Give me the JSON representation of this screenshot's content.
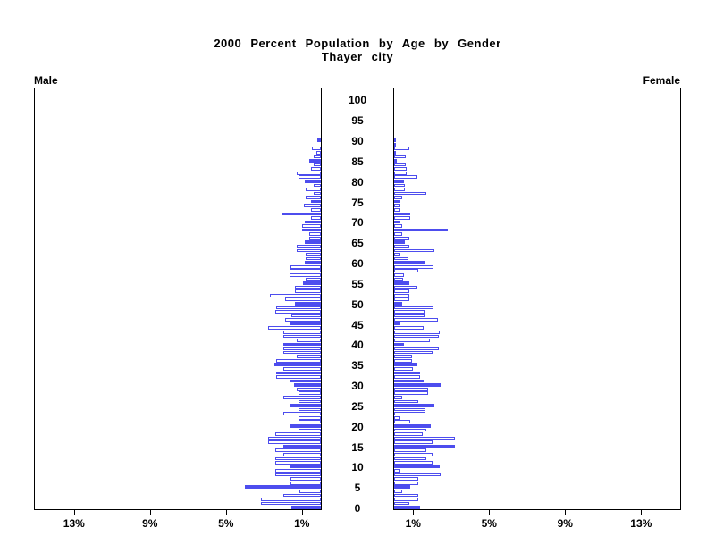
{
  "title": "2000 Percent Population by Age by Gender",
  "subtitle": "Thayer city",
  "left_label": "Male",
  "right_label": "Female",
  "chart_data": {
    "type": "bar",
    "variant": "population-pyramid",
    "title": "2000 Percent Population by Age by Gender",
    "subtitle": "Thayer city",
    "unit": "percent of total population",
    "bar_width_years": 1,
    "highlight_rule": "bars for ages divisible by 5 are solid blue; all other ages are white bars with blue outline",
    "colors": {
      "bar_blue": "#4d4dee",
      "axis": "#000000",
      "background": "#ffffff"
    },
    "age_axis": {
      "label": "Age",
      "ticks": [
        0,
        5,
        10,
        15,
        20,
        25,
        30,
        35,
        40,
        45,
        50,
        55,
        60,
        65,
        70,
        75,
        80,
        85,
        90,
        95,
        100
      ],
      "range": [
        0,
        103.5
      ]
    },
    "pct_axis": {
      "ticks": [
        1,
        5,
        9,
        13
      ],
      "tick_labels": [
        "1%",
        "5%",
        "9%",
        "13%"
      ],
      "range": [
        0,
        15.1
      ],
      "mirrored": true
    },
    "series": [
      {
        "name": "Male",
        "side": "left",
        "ages_start": 0,
        "values": [
          1.55,
          3.15,
          3.15,
          2.0,
          1.15,
          4.0,
          1.6,
          1.6,
          2.4,
          2.4,
          1.6,
          2.4,
          2.4,
          2.0,
          2.4,
          2.0,
          2.8,
          2.8,
          2.4,
          1.2,
          1.65,
          1.2,
          1.2,
          2.0,
          1.2,
          1.65,
          1.2,
          2.0,
          1.2,
          1.25,
          1.4,
          1.65,
          2.35,
          2.35,
          2.0,
          2.45,
          2.35,
          1.25,
          2.0,
          2.0,
          2.0,
          1.25,
          2.0,
          2.0,
          2.8,
          1.6,
          1.9,
          1.55,
          2.4,
          2.35,
          1.35,
          1.9,
          2.7,
          1.35,
          1.35,
          0.95,
          0.8,
          1.65,
          1.65,
          1.6,
          0.85,
          0.8,
          0.8,
          1.25,
          1.25,
          0.85,
          0.6,
          0.6,
          1.0,
          1.0,
          0.85,
          0.5,
          2.05,
          0.5,
          0.9,
          0.5,
          0.8,
          0.4,
          0.8,
          0.4,
          0.85,
          1.2,
          1.25,
          0.5,
          0.4,
          0.6,
          0.4,
          0.25,
          0.45,
          0.0,
          0.2
        ]
      },
      {
        "name": "Female",
        "side": "right",
        "ages_start": 0,
        "values": [
          1.35,
          0.8,
          1.25,
          1.25,
          0.4,
          0.85,
          1.25,
          1.25,
          2.45,
          0.3,
          2.4,
          2.0,
          1.7,
          2.0,
          1.7,
          3.2,
          2.0,
          3.2,
          1.5,
          1.7,
          1.95,
          0.85,
          0.3,
          1.65,
          1.65,
          2.1,
          1.25,
          0.4,
          1.8,
          1.8,
          2.45,
          1.55,
          1.35,
          1.35,
          1.0,
          1.2,
          0.95,
          0.95,
          2.0,
          2.35,
          0.5,
          1.9,
          2.35,
          2.4,
          1.55,
          0.3,
          2.3,
          1.6,
          1.6,
          2.05,
          0.4,
          0.8,
          0.8,
          0.8,
          1.2,
          0.8,
          0.45,
          0.5,
          1.25,
          2.05,
          1.65,
          0.75,
          0.3,
          2.1,
          0.8,
          0.55,
          0.8,
          0.4,
          2.8,
          0.4,
          0.35,
          0.85,
          0.85,
          0.3,
          0.3,
          0.35,
          0.4,
          1.7,
          0.55,
          0.55,
          0.5,
          1.2,
          0.65,
          0.65,
          0.6,
          0.15,
          0.6,
          0.1,
          0.8,
          0.05,
          0.1
        ]
      }
    ],
    "layout": {
      "legend": false,
      "grid": false
    }
  }
}
